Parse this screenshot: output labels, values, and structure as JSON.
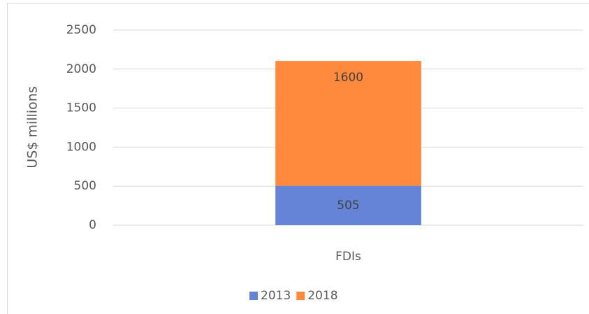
{
  "chart_data": {
    "type": "stacked_bar",
    "y_label": "US$ millions",
    "categories": [
      "FDIs"
    ],
    "series": [
      {
        "name": "2013",
        "color": "#6584d8",
        "values": [
          505
        ]
      },
      {
        "name": "2018",
        "color": "#ff893c",
        "values": [
          1600
        ]
      }
    ],
    "ylim": [
      0,
      2500
    ],
    "yticks": [
      0,
      500,
      1000,
      1500,
      2000,
      2500
    ],
    "grid": true,
    "legend": "bottom"
  }
}
